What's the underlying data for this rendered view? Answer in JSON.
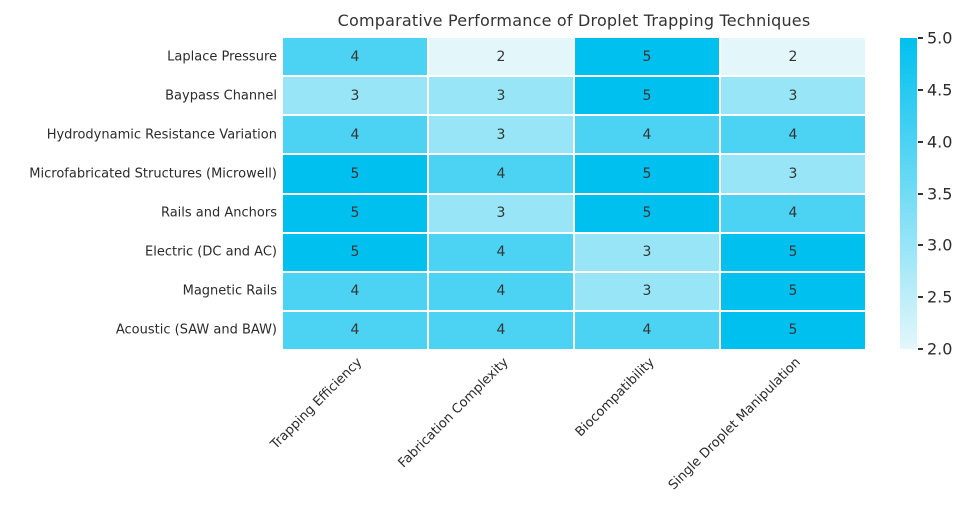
{
  "chart_data": {
    "type": "heatmap",
    "title": "Comparative Performance of Droplet Trapping Techniques",
    "rows": [
      "Laplace Pressure",
      "Baypass Channel",
      "Hydrodynamic Resistance Variation",
      "Microfabricated Structures (Microwell)",
      "Rails and Anchors",
      "Electric (DC and AC)",
      "Magnetic Rails",
      "Acoustic (SAW and BAW)"
    ],
    "columns": [
      "Trapping Efficiency",
      "Fabrication Complexity",
      "Biocompatibility",
      "Single Droplet Manipulation"
    ],
    "values": [
      [
        4,
        2,
        5,
        2
      ],
      [
        3,
        3,
        5,
        3
      ],
      [
        4,
        3,
        4,
        4
      ],
      [
        5,
        4,
        5,
        3
      ],
      [
        5,
        3,
        5,
        4
      ],
      [
        5,
        4,
        3,
        5
      ],
      [
        4,
        4,
        3,
        5
      ],
      [
        4,
        4,
        4,
        5
      ]
    ],
    "vmin": 2.0,
    "vmax": 5.0,
    "colorbar_ticks": [
      "5.0",
      "4.5",
      "4.0",
      "3.5",
      "3.0",
      "2.5",
      "2.0"
    ],
    "legend_position": "right",
    "grid": false,
    "colors": {
      "low": "#e3f7fb",
      "high": "#00c0ef",
      "cell_text": "#353535",
      "label_text": "#2b2b2b",
      "gap": "#ffffff",
      "tick": "#333333"
    }
  }
}
